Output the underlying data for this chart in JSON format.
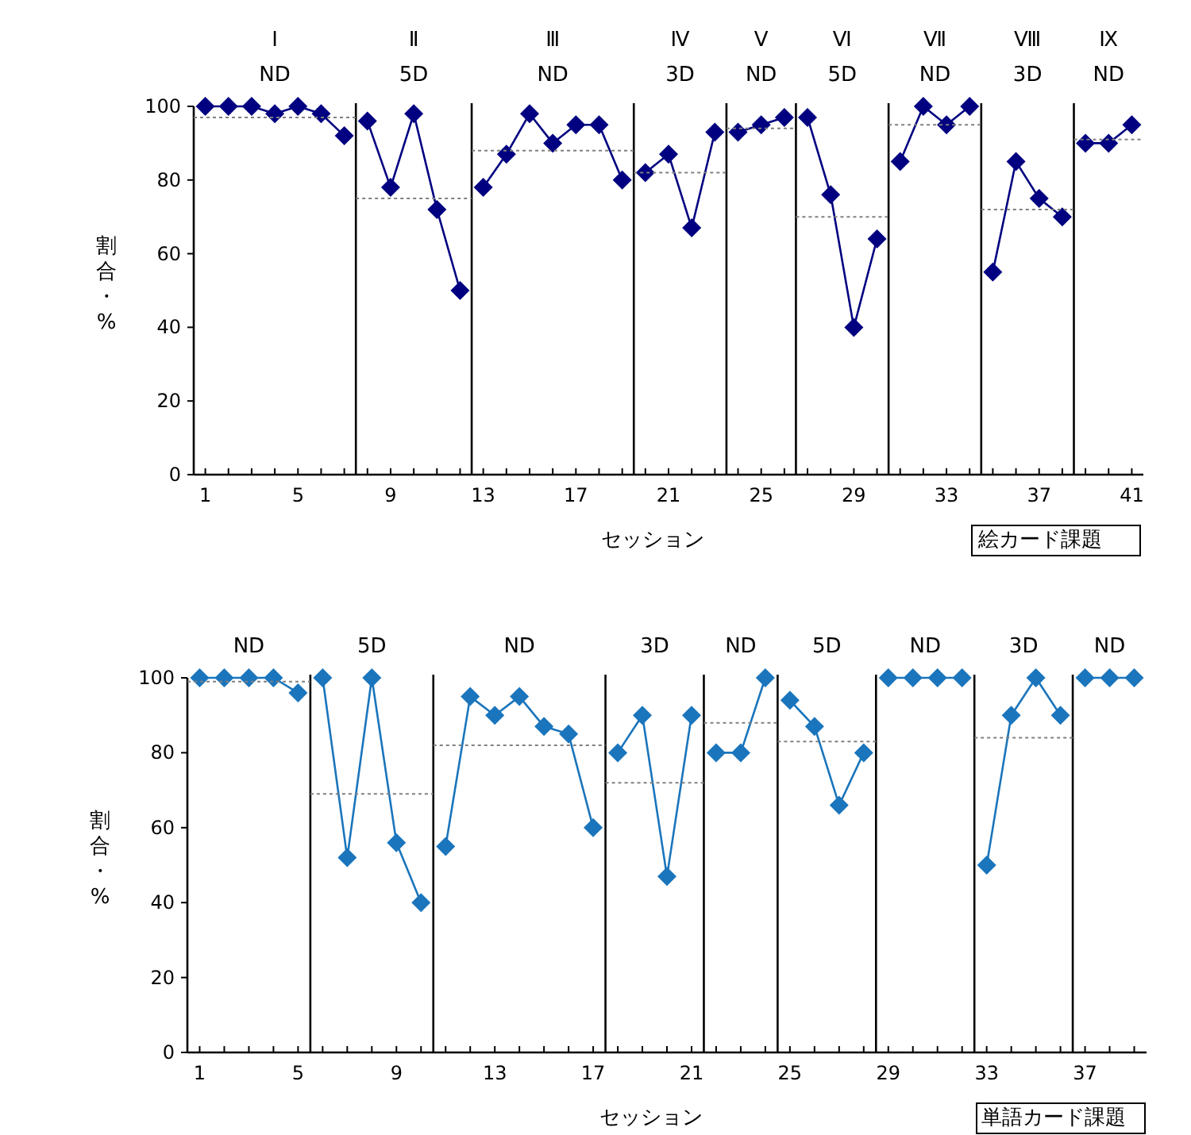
{
  "chart_data": [
    {
      "type": "line",
      "xlabel": "セッション",
      "ylabel": "割合・%",
      "marker": "diamond",
      "xlim": [
        0.5,
        41.5
      ],
      "ylim": [
        0,
        100
      ],
      "yticks": [
        0,
        20,
        40,
        60,
        80,
        100
      ],
      "xticks": [
        1,
        {
          "value": 2,
          "label": null
        },
        {
          "value": 3,
          "label": null
        },
        {
          "value": 4,
          "label": null
        },
        5,
        {
          "value": 6,
          "label": null
        },
        {
          "value": 7,
          "label": null
        },
        {
          "value": 8,
          "label": null
        },
        9,
        {
          "value": 10,
          "label": null
        },
        {
          "value": 11,
          "label": null
        },
        {
          "value": 12,
          "label": null
        },
        13,
        {
          "value": 14,
          "label": null
        },
        {
          "value": 15,
          "label": null
        },
        {
          "value": 16,
          "label": null
        },
        17,
        {
          "value": 18,
          "label": null
        },
        {
          "value": 19,
          "label": null
        },
        {
          "value": 20,
          "label": null
        },
        21,
        {
          "value": 22,
          "label": null
        },
        {
          "value": 23,
          "label": null
        },
        {
          "value": 24,
          "label": null
        },
        25,
        {
          "value": 26,
          "label": null
        },
        {
          "value": 27,
          "label": null
        },
        {
          "value": 28,
          "label": null
        },
        29,
        {
          "value": 30,
          "label": null
        },
        {
          "value": 31,
          "label": null
        },
        {
          "value": 32,
          "label": null
        },
        33,
        {
          "value": 34,
          "label": null
        },
        {
          "value": 35,
          "label": null
        },
        {
          "value": 36,
          "label": null
        },
        37,
        {
          "value": 38,
          "label": null
        },
        {
          "value": 39,
          "label": null
        },
        {
          "value": 40,
          "label": null
        },
        41
      ],
      "annotations": [
        "Ⅰ\nND",
        "Ⅱ\n5D",
        "Ⅲ\nND",
        "Ⅳ\n3D",
        "Ⅴ\nND",
        "Ⅵ\n5D",
        "Ⅶ\nND",
        "Ⅷ\n3D",
        "Ⅸ\nND",
        "絵カード課題"
      ],
      "ref_lines": [
        {
          "axis": "x",
          "value": 7.5,
          "color": "#000000"
        },
        {
          "axis": "x",
          "value": 12.5,
          "color": "#000000"
        },
        {
          "axis": "x",
          "value": 19.5,
          "color": "#000000"
        },
        {
          "axis": "x",
          "value": 23.5,
          "color": "#000000"
        },
        {
          "axis": "x",
          "value": 26.5,
          "color": "#000000"
        },
        {
          "axis": "x",
          "value": 30.5,
          "color": "#000000"
        },
        {
          "axis": "x",
          "value": 34.5,
          "color": "#000000"
        },
        {
          "axis": "x",
          "value": 38.5,
          "color": "#000000"
        }
      ],
      "series": [
        {
          "color": "#000080",
          "x": [
            1,
            2,
            3,
            4,
            5,
            6,
            7
          ],
          "values": [
            100,
            100,
            100,
            98,
            100,
            98,
            92
          ]
        },
        {
          "color": "#000080",
          "x": [
            8,
            9,
            10,
            11,
            12
          ],
          "values": [
            96,
            78,
            98,
            72,
            50
          ]
        },
        {
          "color": "#000080",
          "x": [
            13,
            14,
            15,
            16,
            17,
            18,
            19
          ],
          "values": [
            78,
            87,
            98,
            90,
            95,
            95,
            80
          ]
        },
        {
          "color": "#000080",
          "x": [
            20,
            21,
            22,
            23
          ],
          "values": [
            82,
            87,
            67,
            93
          ]
        },
        {
          "color": "#000080",
          "x": [
            24,
            25,
            26
          ],
          "values": [
            93,
            95,
            97
          ]
        },
        {
          "color": "#000080",
          "x": [
            27,
            28,
            29,
            30
          ],
          "values": [
            97,
            76,
            40,
            64
          ]
        },
        {
          "color": "#000080",
          "x": [
            31,
            32,
            33,
            34
          ],
          "values": [
            85,
            100,
            95,
            100
          ]
        },
        {
          "color": "#000080",
          "x": [
            35,
            36,
            37,
            38
          ],
          "values": [
            55,
            85,
            75,
            70
          ]
        },
        {
          "color": "#000080",
          "x": [
            39,
            40,
            41
          ],
          "values": [
            90,
            90,
            95
          ]
        },
        {
          "type": "line",
          "color": "#808080",
          "line_style": "dotted",
          "marker": "none",
          "x": [
            0.5,
            7.5
          ],
          "values": [
            97,
            97
          ]
        },
        {
          "type": "line",
          "color": "#808080",
          "line_style": "dotted",
          "marker": "none",
          "x": [
            7.5,
            12.5
          ],
          "values": [
            75,
            75
          ]
        },
        {
          "type": "line",
          "color": "#808080",
          "line_style": "dotted",
          "marker": "none",
          "x": [
            12.5,
            19.5
          ],
          "values": [
            88,
            88
          ]
        },
        {
          "type": "line",
          "color": "#808080",
          "line_style": "dotted",
          "marker": "none",
          "x": [
            19.5,
            23.5
          ],
          "values": [
            82,
            82
          ]
        },
        {
          "type": "line",
          "color": "#808080",
          "line_style": "dotted",
          "marker": "none",
          "x": [
            23.5,
            26.5
          ],
          "values": [
            94,
            94
          ]
        },
        {
          "type": "line",
          "color": "#808080",
          "line_style": "dotted",
          "marker": "none",
          "x": [
            26.5,
            30.5
          ],
          "values": [
            70,
            70
          ]
        },
        {
          "type": "line",
          "color": "#808080",
          "line_style": "dotted",
          "marker": "none",
          "x": [
            30.5,
            34.5
          ],
          "values": [
            95,
            95
          ]
        },
        {
          "type": "line",
          "color": "#808080",
          "line_style": "dotted",
          "marker": "none",
          "x": [
            34.5,
            38.5
          ],
          "values": [
            72,
            72
          ]
        },
        {
          "type": "line",
          "color": "#808080",
          "line_style": "dotted",
          "marker": "none",
          "x": [
            38.5,
            41.5
          ],
          "values": [
            91,
            91
          ]
        }
      ]
    },
    {
      "type": "line",
      "xlabel": "セッション",
      "ylabel": "割合・%",
      "marker": "diamond",
      "xlim": [
        0.5,
        39.5
      ],
      "ylim": [
        0,
        100
      ],
      "yticks": [
        0,
        20,
        40,
        60,
        80,
        100
      ],
      "xticks": [
        1,
        {
          "value": 2,
          "label": null
        },
        {
          "value": 3,
          "label": null
        },
        {
          "value": 4,
          "label": null
        },
        5,
        {
          "value": 6,
          "label": null
        },
        {
          "value": 7,
          "label": null
        },
        {
          "value": 8,
          "label": null
        },
        9,
        {
          "value": 10,
          "label": null
        },
        {
          "value": 11,
          "label": null
        },
        {
          "value": 12,
          "label": null
        },
        13,
        {
          "value": 14,
          "label": null
        },
        {
          "value": 15,
          "label": null
        },
        {
          "value": 16,
          "label": null
        },
        17,
        {
          "value": 18,
          "label": null
        },
        {
          "value": 19,
          "label": null
        },
        {
          "value": 20,
          "label": null
        },
        21,
        {
          "value": 22,
          "label": null
        },
        {
          "value": 23,
          "label": null
        },
        {
          "value": 24,
          "label": null
        },
        25,
        {
          "value": 26,
          "label": null
        },
        {
          "value": 27,
          "label": null
        },
        {
          "value": 28,
          "label": null
        },
        29,
        {
          "value": 30,
          "label": null
        },
        {
          "value": 31,
          "label": null
        },
        {
          "value": 32,
          "label": null
        },
        33,
        {
          "value": 34,
          "label": null
        },
        {
          "value": 35,
          "label": null
        },
        {
          "value": 36,
          "label": null
        },
        37,
        {
          "value": 38,
          "label": null
        },
        {
          "value": 39,
          "label": null
        }
      ],
      "annotations": [
        "ND",
        "5D",
        "ND",
        "3D",
        "ND",
        "5D",
        "ND",
        "3D",
        "ND",
        "単語カード課題"
      ],
      "ref_lines": [
        {
          "axis": "x",
          "value": 5.5,
          "color": "#000000"
        },
        {
          "axis": "x",
          "value": 10.5,
          "color": "#000000"
        },
        {
          "axis": "x",
          "value": 17.5,
          "color": "#000000"
        },
        {
          "axis": "x",
          "value": 21.5,
          "color": "#000000"
        },
        {
          "axis": "x",
          "value": 24.5,
          "color": "#000000"
        },
        {
          "axis": "x",
          "value": 28.5,
          "color": "#000000"
        },
        {
          "axis": "x",
          "value": 32.5,
          "color": "#000000"
        },
        {
          "axis": "x",
          "value": 36.5,
          "color": "#000000"
        }
      ],
      "series": [
        {
          "color": "#1a75bc",
          "x": [
            1,
            2,
            3,
            4,
            5
          ],
          "values": [
            100,
            100,
            100,
            100,
            96
          ]
        },
        {
          "color": "#1a75bc",
          "x": [
            6,
            7,
            8,
            9,
            10
          ],
          "values": [
            100,
            52,
            100,
            56,
            40
          ]
        },
        {
          "color": "#1a75bc",
          "x": [
            11,
            12,
            13,
            14,
            15,
            16,
            17
          ],
          "values": [
            55,
            95,
            90,
            95,
            87,
            85,
            60
          ]
        },
        {
          "color": "#1a75bc",
          "x": [
            18,
            19,
            20,
            21
          ],
          "values": [
            80,
            90,
            47,
            90
          ]
        },
        {
          "color": "#1a75bc",
          "x": [
            22,
            23,
            24
          ],
          "values": [
            80,
            80,
            100
          ]
        },
        {
          "color": "#1a75bc",
          "x": [
            25,
            26,
            27,
            28
          ],
          "values": [
            94,
            87,
            66,
            80
          ]
        },
        {
          "color": "#1a75bc",
          "x": [
            29,
            30,
            31,
            32
          ],
          "values": [
            100,
            100,
            100,
            100
          ]
        },
        {
          "color": "#1a75bc",
          "x": [
            33,
            34,
            35,
            36
          ],
          "values": [
            50,
            90,
            100,
            90
          ]
        },
        {
          "color": "#1a75bc",
          "x": [
            37,
            38,
            39
          ],
          "values": [
            100,
            100,
            100
          ]
        },
        {
          "type": "line",
          "color": "#808080",
          "line_style": "dotted",
          "marker": "none",
          "x": [
            0.5,
            5.5
          ],
          "values": [
            99,
            99
          ]
        },
        {
          "type": "line",
          "color": "#808080",
          "line_style": "dotted",
          "marker": "none",
          "x": [
            5.5,
            10.5
          ],
          "values": [
            69,
            69
          ]
        },
        {
          "type": "line",
          "color": "#808080",
          "line_style": "dotted",
          "marker": "none",
          "x": [
            10.5,
            17.5
          ],
          "values": [
            82,
            82
          ]
        },
        {
          "type": "line",
          "color": "#808080",
          "line_style": "dotted",
          "marker": "none",
          "x": [
            17.5,
            21.5
          ],
          "values": [
            72,
            72
          ]
        },
        {
          "type": "line",
          "color": "#808080",
          "line_style": "dotted",
          "marker": "none",
          "x": [
            21.5,
            24.5
          ],
          "values": [
            88,
            88
          ]
        },
        {
          "type": "line",
          "color": "#808080",
          "line_style": "dotted",
          "marker": "none",
          "x": [
            24.5,
            28.5
          ],
          "values": [
            83,
            83
          ]
        },
        {
          "type": "line",
          "color": "#808080",
          "line_style": "dotted",
          "marker": "none",
          "x": [
            32.5,
            36.5
          ],
          "values": [
            84,
            84
          ]
        }
      ]
    }
  ]
}
